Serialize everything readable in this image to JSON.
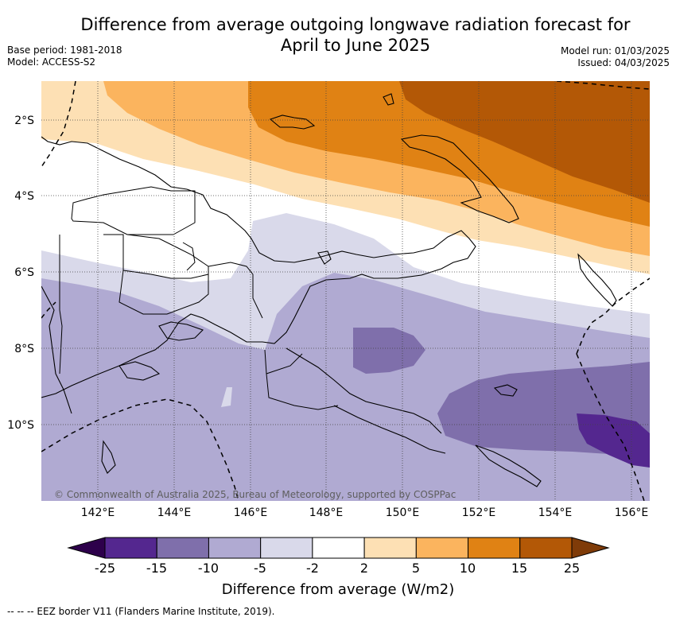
{
  "title_line1": "Difference from average outgoing longwave radiation forecast for",
  "title_line2": "April to June 2025",
  "base_period": "Base period: 1981-2018",
  "model": "Model: ACCESS-S2",
  "model_run": "Model run: 01/03/2025",
  "issued": "Issued: 04/03/2025",
  "copyright": "© Commonwealth of Australia 2025, Bureau of Meteorology, supported by COSPPac",
  "lon_labels": [
    "142°E",
    "144°E",
    "146°E",
    "148°E",
    "150°E",
    "152°E",
    "154°E",
    "156°E"
  ],
  "lat_labels": [
    "2°S",
    "4°S",
    "6°S",
    "8°S",
    "10°S"
  ],
  "colorbar": {
    "ticks": [
      "-25",
      "-15",
      "-10",
      "-5",
      "-2",
      "2",
      "5",
      "10",
      "15",
      "25"
    ],
    "colors": [
      "#54278f",
      "#7f6fab",
      "#b0aad2",
      "#d9d9ea",
      "#ffffff",
      "#fde0b4",
      "#fbb45e",
      "#e08214",
      "#b35806"
    ],
    "under_color": "#2d004b",
    "over_color": "#7f3b08",
    "label": "Difference from average (W/m2)"
  },
  "footer": "-- -- -- EEZ border V11 (Flanders Marine Institute, 2019)."
}
